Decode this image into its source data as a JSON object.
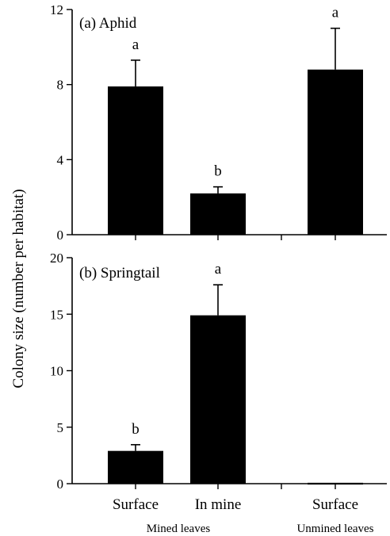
{
  "chart_data": [
    {
      "type": "bar",
      "panel_label": "(a) Aphid",
      "categories": [
        "Surface",
        "In mine",
        "Surface"
      ],
      "values": [
        7.9,
        2.2,
        8.8
      ],
      "errors": [
        1.4,
        0.35,
        2.2
      ],
      "significance_letters": [
        "a",
        "b",
        "a"
      ],
      "ylim": [
        0,
        12
      ],
      "yticks": [
        0,
        4,
        8,
        12
      ],
      "bar_color": "#000000"
    },
    {
      "type": "bar",
      "panel_label": "(b) Springtail",
      "categories": [
        "Surface",
        "In mine",
        "Surface"
      ],
      "values": [
        2.9,
        14.9,
        0
      ],
      "errors": [
        0.55,
        2.7,
        0
      ],
      "significance_letters": [
        "b",
        "a",
        ""
      ],
      "ylim": [
        0,
        20
      ],
      "yticks": [
        0,
        5,
        10,
        15,
        20
      ],
      "bar_color": "#000000"
    }
  ],
  "ylabel": "Colony size (number per habitat)",
  "xtick_labels": [
    "Surface",
    "In mine",
    "Surface"
  ],
  "groups": [
    "Mined leaves",
    "Unmined leaves"
  ]
}
